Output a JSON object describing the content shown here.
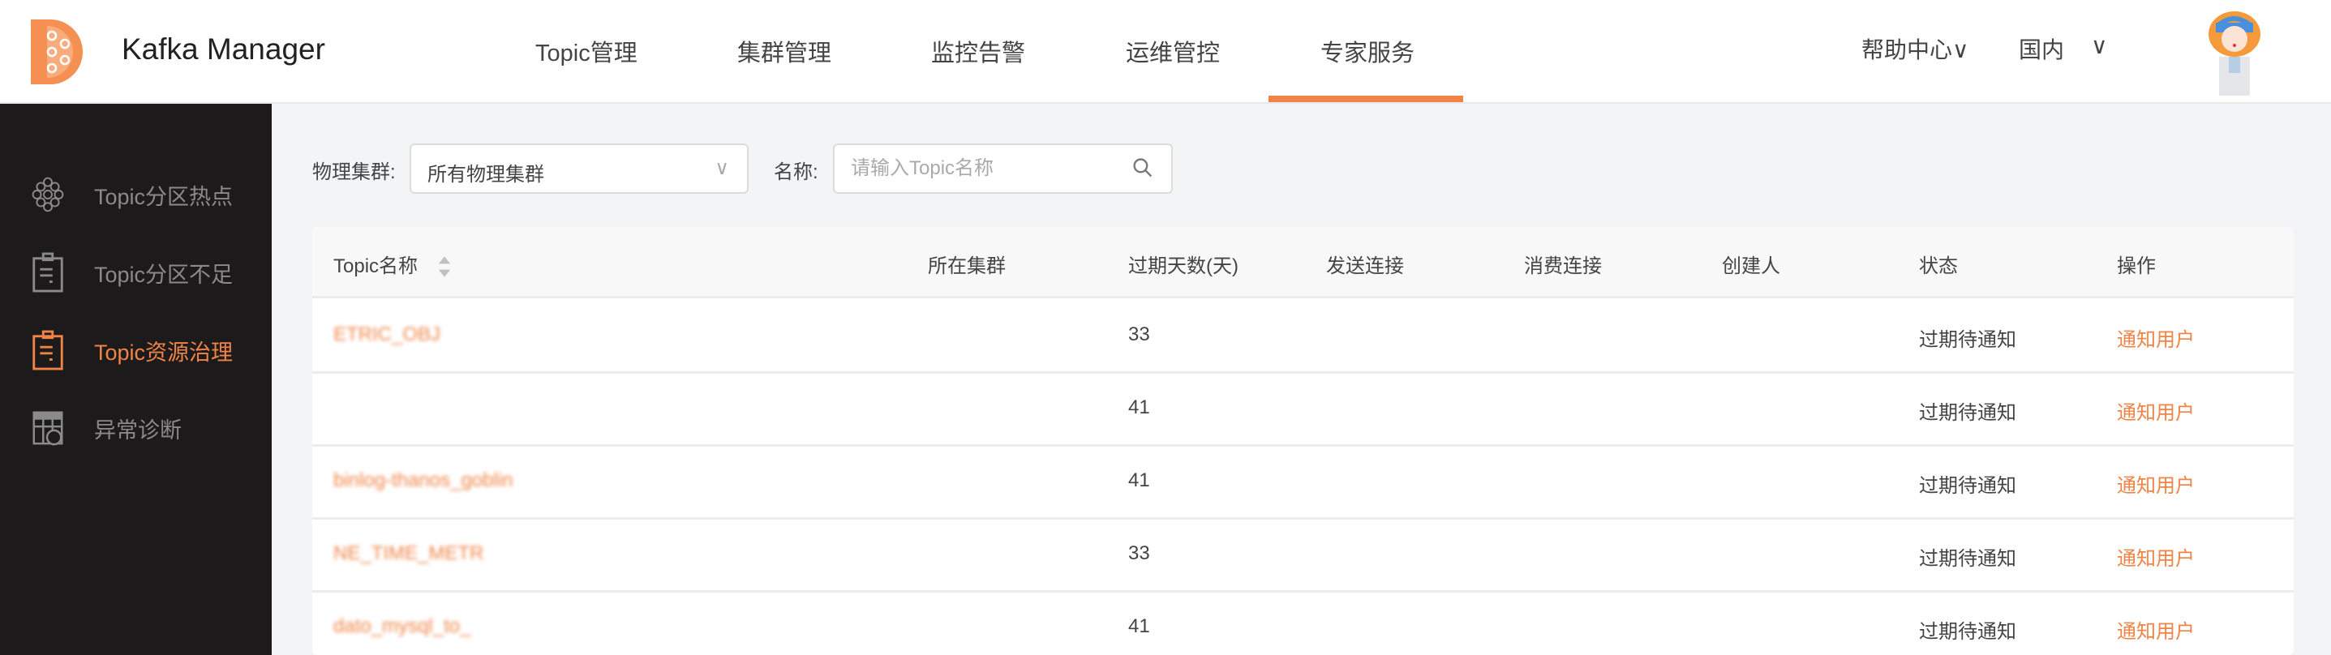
{
  "header": {
    "app_title": "Kafka Manager",
    "nav": [
      {
        "label": "Topic管理"
      },
      {
        "label": "集群管理"
      },
      {
        "label": "监控告警"
      },
      {
        "label": "运维管控"
      },
      {
        "label": "专家服务",
        "active": true
      }
    ],
    "help": "帮助中心∨",
    "region": "国内",
    "region_chevron": "∨",
    "accent": "#ef8446"
  },
  "sidebar": {
    "items": [
      {
        "label": "Topic分区热点",
        "icon": "honeycomb-icon"
      },
      {
        "label": "Topic分区不足",
        "icon": "clipboard-icon"
      },
      {
        "label": "Topic资源治理",
        "icon": "clipboard-icon",
        "active": true
      },
      {
        "label": "异常诊断",
        "icon": "table-dollar-icon"
      }
    ]
  },
  "filters": {
    "cluster_label": "物理集群:",
    "cluster_value": "所有物理集群",
    "name_label": "名称:",
    "name_placeholder": "请输入Topic名称"
  },
  "table": {
    "columns": [
      "Topic名称",
      "所在集群",
      "过期天数(天)",
      "发送连接",
      "消费连接",
      "创建人",
      "状态",
      "操作"
    ],
    "rows": [
      {
        "topic": "ETRIC_OBJ",
        "cluster": "",
        "days": "33",
        "send": "",
        "consume": "",
        "creator": "",
        "status": "过期待通知",
        "action": "通知用户"
      },
      {
        "topic": "",
        "cluster": "",
        "days": "41",
        "send": "",
        "consume": "",
        "creator": "",
        "status": "过期待通知",
        "action": "通知用户"
      },
      {
        "topic": "binlog-thanos_goblin",
        "cluster": "",
        "days": "41",
        "send": "",
        "consume": "",
        "creator": "",
        "status": "过期待通知",
        "action": "通知用户"
      },
      {
        "topic": "NE_TIME_METR",
        "cluster": "",
        "days": "33",
        "send": "",
        "consume": "",
        "creator": "",
        "status": "过期待通知",
        "action": "通知用户"
      },
      {
        "topic": "dato_mysql_to_",
        "cluster": "",
        "days": "41",
        "send": "",
        "consume": "",
        "creator": "",
        "status": "过期待通知",
        "action": "通知用户"
      }
    ]
  }
}
